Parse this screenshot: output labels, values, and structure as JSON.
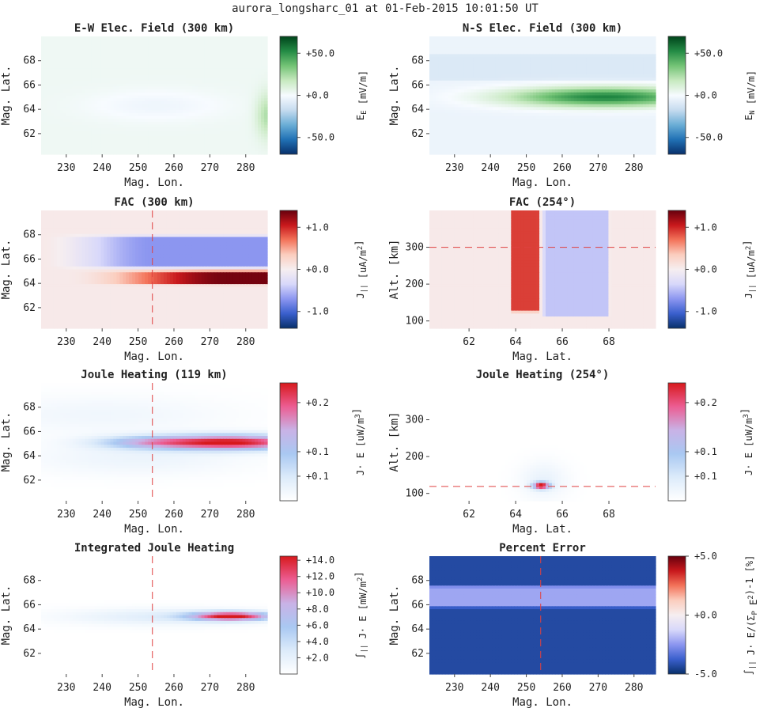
{
  "figure_title": "aurora_longsharc_01 at 01-Feb-2015 10:01:50 UT",
  "colors": {
    "green_map": [
      "#08306b",
      "#2171b5",
      "#6baed6",
      "#c6dbef",
      "#f7fbff",
      "#c7e9c0",
      "#74c476",
      "#238b45",
      "#00441b"
    ],
    "redblue_map": [
      "#08306b",
      "#3a5fcd",
      "#8c96f0",
      "#d8d8fa",
      "#f6eef0",
      "#fbcdbe",
      "#f3735a",
      "#c8181c",
      "#67000d"
    ],
    "joule_map": [
      "#ffffff",
      "#dcebfa",
      "#a9c8f2",
      "#c9b2e6",
      "#ec5d92",
      "#d7191c"
    ],
    "error_bg": "#2a4fd4",
    "error_band": "#8c96e6",
    "ref_line": "#e04040"
  },
  "chart_data": [
    {
      "id": "ew_field",
      "type": "heatmap",
      "title": "E-W Elec. Field (300 km)",
      "xlabel": "Mag. Lon.",
      "ylabel": "Mag. Lat.",
      "xticks": [
        230,
        240,
        250,
        260,
        270,
        280
      ],
      "yticks": [
        62,
        64,
        66,
        68
      ],
      "xlim": [
        223,
        286
      ],
      "ylim": [
        60.3,
        70
      ],
      "colorbar": {
        "label": "E_E [mV/m]",
        "ticks": [
          "+50.0",
          "+0.0",
          "-50.0"
        ],
        "tick_values": [
          50,
          0,
          -50
        ],
        "clim": [
          -70,
          70
        ],
        "cmap": "green_map"
      },
      "background": 3,
      "features": [
        {
          "shape": "ellipse",
          "x": 255,
          "y": 64.3,
          "rx": 18,
          "ry": 1.2,
          "value": -6
        },
        {
          "shape": "ellipse",
          "x": 286,
          "y": 63.5,
          "rx": 3,
          "ry": 1.8,
          "value": 20
        }
      ]
    },
    {
      "id": "ns_field",
      "type": "heatmap",
      "title": "N-S Elec. Field (300 km)",
      "xlabel": "Mag. Lon.",
      "ylabel": "Mag. Lat.",
      "xticks": [
        230,
        240,
        250,
        260,
        270,
        280
      ],
      "yticks": [
        62,
        64,
        66,
        68
      ],
      "xlim": [
        223,
        286
      ],
      "ylim": [
        60.3,
        70
      ],
      "colorbar": {
        "label": "E_N [mV/m]",
        "ticks": [
          "+50.0",
          "+0.0",
          "-50.0"
        ],
        "tick_values": [
          50,
          0,
          -50
        ],
        "clim": [
          -70,
          70
        ],
        "cmap": "green_map"
      },
      "background": -4,
      "features": [
        {
          "shape": "band",
          "y0": 66.4,
          "y1": 68.5,
          "value": -10
        },
        {
          "shape": "ellipse",
          "x": 272,
          "y": 65.0,
          "rx": 27,
          "ry": 0.8,
          "value": 58
        }
      ]
    },
    {
      "id": "fac_300",
      "type": "heatmap",
      "title": "FAC (300 km)",
      "xlabel": "Mag. Lon.",
      "ylabel": "Mag. Lat.",
      "xticks": [
        230,
        240,
        250,
        260,
        270,
        280
      ],
      "yticks": [
        62,
        64,
        66,
        68
      ],
      "xlim": [
        223,
        286
      ],
      "ylim": [
        60.3,
        70
      ],
      "reference_x": 254,
      "colorbar": {
        "label": "J_|| [uA/m^2]",
        "ticks": [
          "+1.0",
          "+0.0",
          "-1.0"
        ],
        "tick_values": [
          1,
          0,
          -1
        ],
        "clim": [
          -1.4,
          1.4
        ],
        "cmap": "redblue_map"
      },
      "background": 0.05,
      "features": [
        {
          "shape": "band",
          "y0": 65.3,
          "y1": 67.9,
          "value": -0.7,
          "x_ramp": [
            223,
            254
          ]
        },
        {
          "shape": "band",
          "y0": 63.9,
          "y1": 65.0,
          "value": 1.35,
          "x_ramp": [
            230,
            275
          ]
        }
      ]
    },
    {
      "id": "fac_254",
      "type": "heatmap",
      "title": "FAC (254°)",
      "xlabel": "Mag. Lat.",
      "ylabel": "Alt. [km]",
      "xticks": [
        62,
        64,
        66,
        68
      ],
      "yticks": [
        100,
        200,
        300
      ],
      "xlim": [
        60.3,
        70
      ],
      "ylim": [
        80,
        400
      ],
      "reference_y": 300,
      "colorbar": {
        "label": "J_|| [uA/m^2]",
        "ticks": [
          "+1.0",
          "+0.0",
          "-1.0"
        ],
        "tick_values": [
          1,
          0,
          -1
        ],
        "clim": [
          -1.4,
          1.4
        ],
        "cmap": "redblue_map"
      },
      "background": 0.05,
      "features": [
        {
          "shape": "rect",
          "x0": 63.8,
          "x1": 65.0,
          "y0": 125,
          "y1": 400,
          "value": 0.9
        },
        {
          "shape": "rect",
          "x0": 65.2,
          "x1": 68.0,
          "y0": 112,
          "y1": 400,
          "value": -0.45
        }
      ]
    },
    {
      "id": "joule_119",
      "type": "heatmap",
      "title": "Joule Heating (119 km)",
      "xlabel": "Mag. Lon.",
      "ylabel": "Mag. Lat.",
      "xticks": [
        230,
        240,
        250,
        260,
        270,
        280
      ],
      "yticks": [
        62,
        64,
        66,
        68
      ],
      "xlim": [
        223,
        286
      ],
      "ylim": [
        60.3,
        70
      ],
      "reference_x": 254,
      "colorbar": {
        "label": "J· E [uW/m^3]",
        "ticks": [
          "+0.2",
          "+0.1",
          "+0.1"
        ],
        "tick_values": [
          0.2,
          0.1,
          0.05
        ],
        "clim": [
          0,
          0.24
        ],
        "cmap": "joule_map"
      },
      "background": 0.0,
      "features": [
        {
          "shape": "ellipse",
          "x": 240,
          "y": 67.4,
          "rx": 35,
          "ry": 1.6,
          "value": 0.02
        },
        {
          "shape": "ellipse",
          "x": 250,
          "y": 63.8,
          "rx": 30,
          "ry": 1.4,
          "value": 0.025
        },
        {
          "shape": "ellipse",
          "x": 252,
          "y": 65.1,
          "rx": 14,
          "ry": 0.5,
          "value": 0.08
        },
        {
          "shape": "ellipse",
          "x": 276,
          "y": 65.1,
          "rx": 22,
          "ry": 0.6,
          "value": 0.24
        }
      ]
    },
    {
      "id": "joule_254",
      "type": "heatmap",
      "title": "Joule Heating (254°)",
      "xlabel": "Mag. Lat.",
      "ylabel": "Alt. [km]",
      "xticks": [
        62,
        64,
        66,
        68
      ],
      "yticks": [
        100,
        200,
        300
      ],
      "xlim": [
        60.3,
        70
      ],
      "ylim": [
        80,
        400
      ],
      "reference_y": 119,
      "colorbar": {
        "label": "J· E [uW/m^3]",
        "ticks": [
          "+0.2",
          "+0.1",
          "+0.1"
        ],
        "tick_values": [
          0.2,
          0.1,
          0.05
        ],
        "clim": [
          0,
          0.24
        ],
        "cmap": "joule_map"
      },
      "background": 0.0,
      "features": [
        {
          "shape": "ellipse",
          "x": 65.2,
          "y": 135,
          "rx": 1.0,
          "ry": 50,
          "value": 0.03
        },
        {
          "shape": "ellipse",
          "x": 65.1,
          "y": 121,
          "rx": 0.35,
          "ry": 9,
          "value": 0.24
        }
      ]
    },
    {
      "id": "joule_int",
      "type": "heatmap",
      "title": "Integrated Joule Heating",
      "xlabel": "Mag. Lon.",
      "ylabel": "Mag. Lat.",
      "xticks": [
        230,
        240,
        250,
        260,
        270,
        280
      ],
      "yticks": [
        62,
        64,
        66,
        68
      ],
      "xlim": [
        223,
        286
      ],
      "ylim": [
        60.3,
        70
      ],
      "reference_x": 254,
      "colorbar": {
        "label": "∫_|| J· E [mW/m^2]",
        "ticks": [
          "+14.0",
          "+12.0",
          "+10.0",
          "+8.0",
          "+6.0",
          "+4.0",
          "+2.0"
        ],
        "tick_values": [
          14,
          12,
          10,
          8,
          6,
          4,
          2
        ],
        "clim": [
          0,
          14.5
        ],
        "cmap": "joule_map"
      },
      "background": 0.0,
      "features": [
        {
          "shape": "ellipse",
          "x": 258,
          "y": 65.0,
          "rx": 28,
          "ry": 0.7,
          "value": 2.5
        },
        {
          "shape": "ellipse",
          "x": 276,
          "y": 65.05,
          "rx": 11,
          "ry": 0.35,
          "value": 14.2
        }
      ]
    },
    {
      "id": "percent_error",
      "type": "heatmap",
      "title": "Percent Error",
      "xlabel": "Mag. Lon.",
      "ylabel": "Mag. Lat.",
      "xticks": [
        230,
        240,
        250,
        260,
        270,
        280
      ],
      "yticks": [
        62,
        64,
        66,
        68
      ],
      "xlim": [
        223,
        286
      ],
      "ylim": [
        60.3,
        70
      ],
      "reference_x": 254,
      "colorbar": {
        "label": "∫_|| J· E/(Σ_P E^2)-1 [%]",
        "ticks": [
          "+5.0",
          "+0.0",
          "-5.0"
        ],
        "tick_values": [
          5,
          0,
          -5
        ],
        "clim": [
          -5,
          5
        ],
        "cmap": "redblue_map"
      },
      "background": -4.3,
      "features": [
        {
          "shape": "band",
          "y0": 65.8,
          "y1": 67.5,
          "value": -2.2
        }
      ]
    }
  ]
}
